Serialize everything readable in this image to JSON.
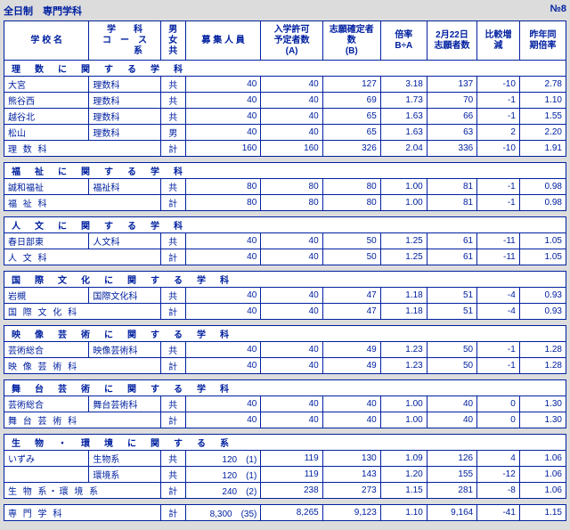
{
  "page": {
    "left": "全日制　専門学科",
    "right": "№8"
  },
  "columns": [
    "学 校 名",
    "学　　科\nコ　ー　ス\n　　　系",
    "男\n女\n共",
    "募 集 人 員",
    "入学許可\n予定者数\n(A)",
    "志願確定者\n数\n(B)",
    "倍率\nB÷A",
    "2月22日\n志願者数",
    "比較増\n減",
    "昨年同\n期倍率"
  ],
  "sections": [
    {
      "title": "理　数　に　関　す　る　学　科",
      "rows": [
        [
          "大宮",
          "理数科",
          "共",
          "40",
          "40",
          "127",
          "3.18",
          "137",
          "-10",
          "2.78"
        ],
        [
          "熊谷西",
          "理数科",
          "共",
          "40",
          "40",
          "69",
          "1.73",
          "70",
          "-1",
          "1.10"
        ],
        [
          "越谷北",
          "理数科",
          "共",
          "40",
          "40",
          "65",
          "1.63",
          "66",
          "-1",
          "1.55"
        ],
        [
          "松山",
          "理数科",
          "男",
          "40",
          "40",
          "65",
          "1.63",
          "63",
          "2",
          "2.20"
        ]
      ],
      "subtotal": [
        "理 数 科",
        "",
        "計",
        "160",
        "160",
        "326",
        "2.04",
        "336",
        "-10",
        "1.91"
      ]
    },
    {
      "title": "福　祉　に　関　す　る　学　科",
      "rows": [
        [
          "誠和福祉",
          "福祉科",
          "共",
          "80",
          "80",
          "80",
          "1.00",
          "81",
          "-1",
          "0.98"
        ]
      ],
      "subtotal": [
        "福 祉 科",
        "",
        "計",
        "80",
        "80",
        "80",
        "1.00",
        "81",
        "-1",
        "0.98"
      ]
    },
    {
      "title": "人　文　に　関　す　る　学　科",
      "rows": [
        [
          "春日部東",
          "人文科",
          "共",
          "40",
          "40",
          "50",
          "1.25",
          "61",
          "-11",
          "1.05"
        ]
      ],
      "subtotal": [
        "人 文 科",
        "",
        "計",
        "40",
        "40",
        "50",
        "1.25",
        "61",
        "-11",
        "1.05"
      ]
    },
    {
      "title": "国　際　文　化　に　関　す　る　学　科",
      "rows": [
        [
          "岩槻",
          "国際文化科",
          "共",
          "40",
          "40",
          "47",
          "1.18",
          "51",
          "-4",
          "0.93"
        ]
      ],
      "subtotal": [
        "国 際 文 化 科",
        "",
        "計",
        "40",
        "40",
        "47",
        "1.18",
        "51",
        "-4",
        "0.93"
      ]
    },
    {
      "title": "映　像　芸　術　に　関　す　る　学　科",
      "rows": [
        [
          "芸術総合",
          "映像芸術科",
          "共",
          "40",
          "40",
          "49",
          "1.23",
          "50",
          "-1",
          "1.28"
        ]
      ],
      "subtotal": [
        "映 像 芸 術 科",
        "",
        "計",
        "40",
        "40",
        "49",
        "1.23",
        "50",
        "-1",
        "1.28"
      ]
    },
    {
      "title": "舞　台　芸　術　に　関　す　る　学　科",
      "rows": [
        [
          "芸術総合",
          "舞台芸術科",
          "共",
          "40",
          "40",
          "40",
          "1.00",
          "40",
          "0",
          "1.30"
        ]
      ],
      "subtotal": [
        "舞 台 芸 術 科",
        "",
        "計",
        "40",
        "40",
        "40",
        "1.00",
        "40",
        "0",
        "1.30"
      ]
    },
    {
      "title": "生　物　・　環　境　に　関　す　る　系",
      "rows": [
        [
          "いずみ",
          "生物系",
          "共",
          "120　(1)",
          "119",
          "130",
          "1.09",
          "126",
          "4",
          "1.06"
        ],
        [
          "",
          "環境系",
          "共",
          "120　(1)",
          "119",
          "143",
          "1.20",
          "155",
          "-12",
          "1.06"
        ]
      ],
      "subtotal": [
        "生 物 系・環 境 系",
        "",
        "計",
        "240　(2)",
        "238",
        "273",
        "1.15",
        "281",
        "-8",
        "1.06"
      ]
    }
  ],
  "grand": [
    "専 門 学 科",
    "",
    "計",
    "8,300　(35)",
    "8,265",
    "9,123",
    "1.10",
    "9,164",
    "-41",
    "1.15"
  ]
}
